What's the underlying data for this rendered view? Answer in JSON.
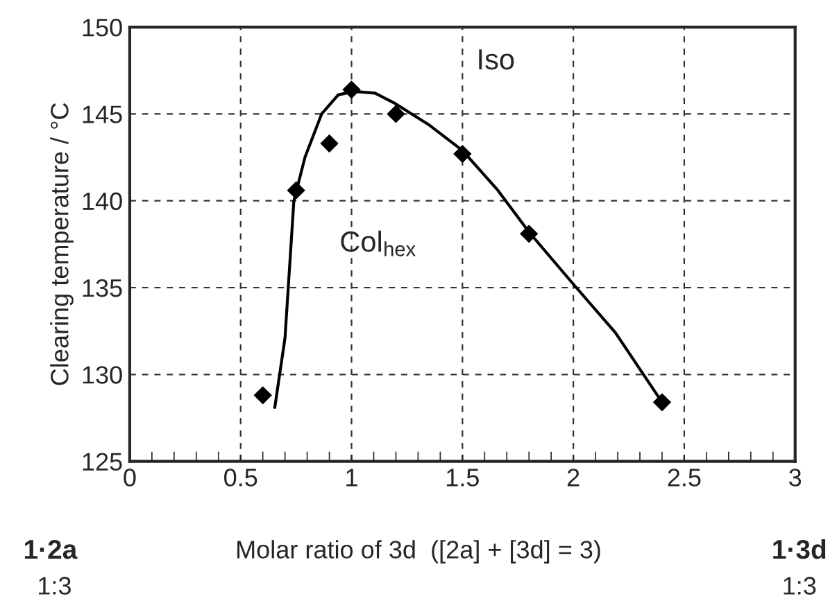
{
  "chart_data": {
    "type": "scatter",
    "xlabel": "Molar ratio of 3d  ([2a] + [3d] = 3)",
    "ylabel": "Clearing temperature / °C",
    "xlim": [
      0,
      3
    ],
    "xticks": [
      0,
      0.5,
      1,
      1.5,
      2,
      2.5,
      3
    ],
    "ylim": [
      125,
      150
    ],
    "yticks": [
      125,
      130,
      135,
      140,
      145,
      150
    ],
    "grid": true,
    "marker": "diamond",
    "series": [
      {
        "color": "#000000",
        "x": [
          0.6,
          0.75,
          0.9,
          1.0,
          1.2,
          1.5,
          1.8,
          2.4
        ],
        "values": [
          128.8,
          140.6,
          143.3,
          146.4,
          145.0,
          142.7,
          138.1,
          128.4
        ]
      },
      {
        "type": "line",
        "color": "#000000",
        "marker": "none",
        "line_style": "solid",
        "x": [
          0.654,
          0.7,
          0.74,
          0.79,
          0.865,
          0.94,
          1.01,
          1.106,
          1.197,
          1.346,
          1.5,
          1.66,
          1.8,
          2.0,
          2.19,
          2.4
        ],
        "values": [
          128.1,
          132.1,
          140.0,
          142.5,
          145.0,
          146.1,
          146.3,
          146.2,
          145.6,
          144.4,
          142.9,
          140.6,
          138.2,
          135.2,
          132.4,
          128.4
        ]
      }
    ],
    "annotations": [
      "Iso",
      "Col$_{hex}$",
      "1·2a",
      "1:3",
      "1·3d",
      "1:3"
    ]
  }
}
